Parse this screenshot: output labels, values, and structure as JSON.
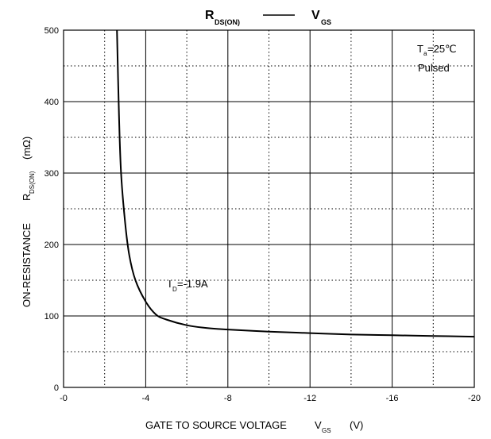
{
  "chart_data": {
    "type": "line",
    "title": {
      "left_main": "R",
      "left_sub": "DS(ON)",
      "right_main": "V",
      "right_sub": "GS"
    },
    "xlabel": {
      "text": "GATE TO SOURCE VOLTAGE",
      "sym": "V",
      "sym_sub": "GS",
      "unit": "(V)"
    },
    "ylabel": {
      "text": "ON-RESISTANCE",
      "sym": "R",
      "sym_sub": "DS(ON)",
      "unit": "(mΩ)"
    },
    "x_ticks": [
      "-0",
      "-4",
      "-8",
      "-12",
      "-16",
      "-20"
    ],
    "y_ticks": [
      "0",
      "100",
      "200",
      "300",
      "400",
      "500"
    ],
    "xlim": [
      0,
      -20
    ],
    "ylim": [
      0,
      500
    ],
    "grid": {
      "major": "solid",
      "minor": "dotted"
    },
    "annotations": {
      "temp_main": "T",
      "temp_sub": "a",
      "temp_value": "=25℃",
      "mode": "Pulsed",
      "id_main": "I",
      "id_sub": "D",
      "id_value": "=-1.9A"
    },
    "series": [
      {
        "x": [
          -2.6,
          -2.7,
          -2.8,
          -3.0,
          -3.2,
          -3.5,
          -4.0,
          -4.5,
          -5.0,
          -6.0,
          -7.0,
          -8.0,
          -10.0,
          -12.0,
          -14.0,
          -16.0,
          -18.0,
          -20.0
        ],
        "y": [
          500,
          380,
          300,
          230,
          185,
          150,
          120,
          102,
          95,
          87,
          83,
          81,
          78,
          76,
          74,
          73,
          72,
          71
        ]
      }
    ]
  }
}
